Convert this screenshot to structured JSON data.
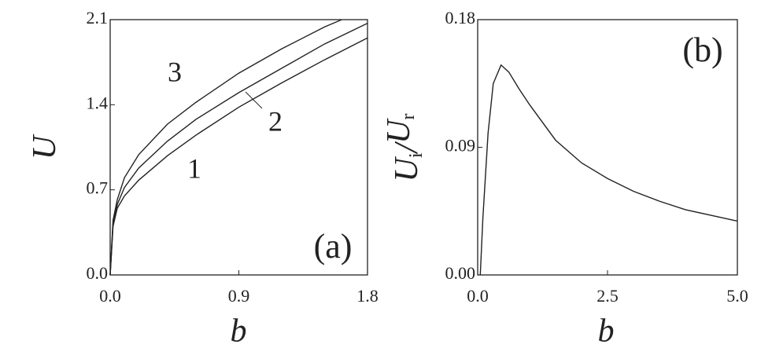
{
  "chart_data": [
    {
      "type": "line",
      "xlabel": "b",
      "ylabel": [
        "U"
      ],
      "annotations": [
        "(a)"
      ],
      "xlim": [
        0,
        1.8
      ],
      "ylim": [
        0,
        2.1
      ],
      "xticks": [
        {
          "value": 0,
          "label": "0.0"
        },
        0.9,
        1.8
      ],
      "yticks": [
        {
          "value": 0,
          "label": "0.0"
        },
        0.7,
        1.4,
        2.1
      ],
      "series": [
        {
          "name": "1",
          "color": "#222222",
          "x": [
            0,
            0.02,
            0.05,
            0.1,
            0.2,
            0.4,
            0.6,
            0.9,
            1.2,
            1.5,
            1.8
          ],
          "values": [
            0,
            0.4,
            0.55,
            0.65,
            0.78,
            0.98,
            1.15,
            1.38,
            1.58,
            1.77,
            1.95
          ]
        },
        {
          "name": "2",
          "color": "#222222",
          "x": [
            0,
            0.02,
            0.05,
            0.1,
            0.2,
            0.4,
            0.6,
            0.9,
            1.2,
            1.5,
            1.8
          ],
          "values": [
            0,
            0.42,
            0.58,
            0.72,
            0.88,
            1.1,
            1.28,
            1.5,
            1.7,
            1.9,
            2.07
          ]
        },
        {
          "name": "3",
          "color": "#222222",
          "x": [
            0,
            0.02,
            0.05,
            0.1,
            0.2,
            0.4,
            0.6,
            0.9,
            1.2,
            1.5,
            1.62
          ],
          "values": [
            0,
            0.45,
            0.62,
            0.8,
            0.99,
            1.24,
            1.42,
            1.66,
            1.86,
            2.04,
            2.1
          ]
        }
      ]
    },
    {
      "type": "line",
      "xlabel": "b",
      "ylabel": [
        "U",
        "i",
        "/",
        "U",
        "r"
      ],
      "annotations": [
        "(b)"
      ],
      "xlim": [
        0,
        5
      ],
      "ylim": [
        0,
        0.18
      ],
      "xticks": [
        {
          "value": 0,
          "label": "0.0"
        },
        2.5,
        {
          "value": 5,
          "label": "5.0"
        }
      ],
      "yticks": [
        {
          "value": 0,
          "label": "0.00"
        },
        0.09,
        0.18
      ],
      "series": [
        {
          "color": "#222222",
          "x": [
            0.05,
            0.1,
            0.2,
            0.3,
            0.45,
            0.6,
            0.8,
            1.0,
            1.5,
            2.0,
            2.5,
            3.0,
            3.5,
            4.0,
            4.5,
            5.0
          ],
          "values": [
            0,
            0.04,
            0.1,
            0.135,
            0.148,
            0.143,
            0.131,
            0.12,
            0.095,
            0.079,
            0.068,
            0.059,
            0.052,
            0.046,
            0.042,
            0.038
          ]
        }
      ]
    }
  ]
}
